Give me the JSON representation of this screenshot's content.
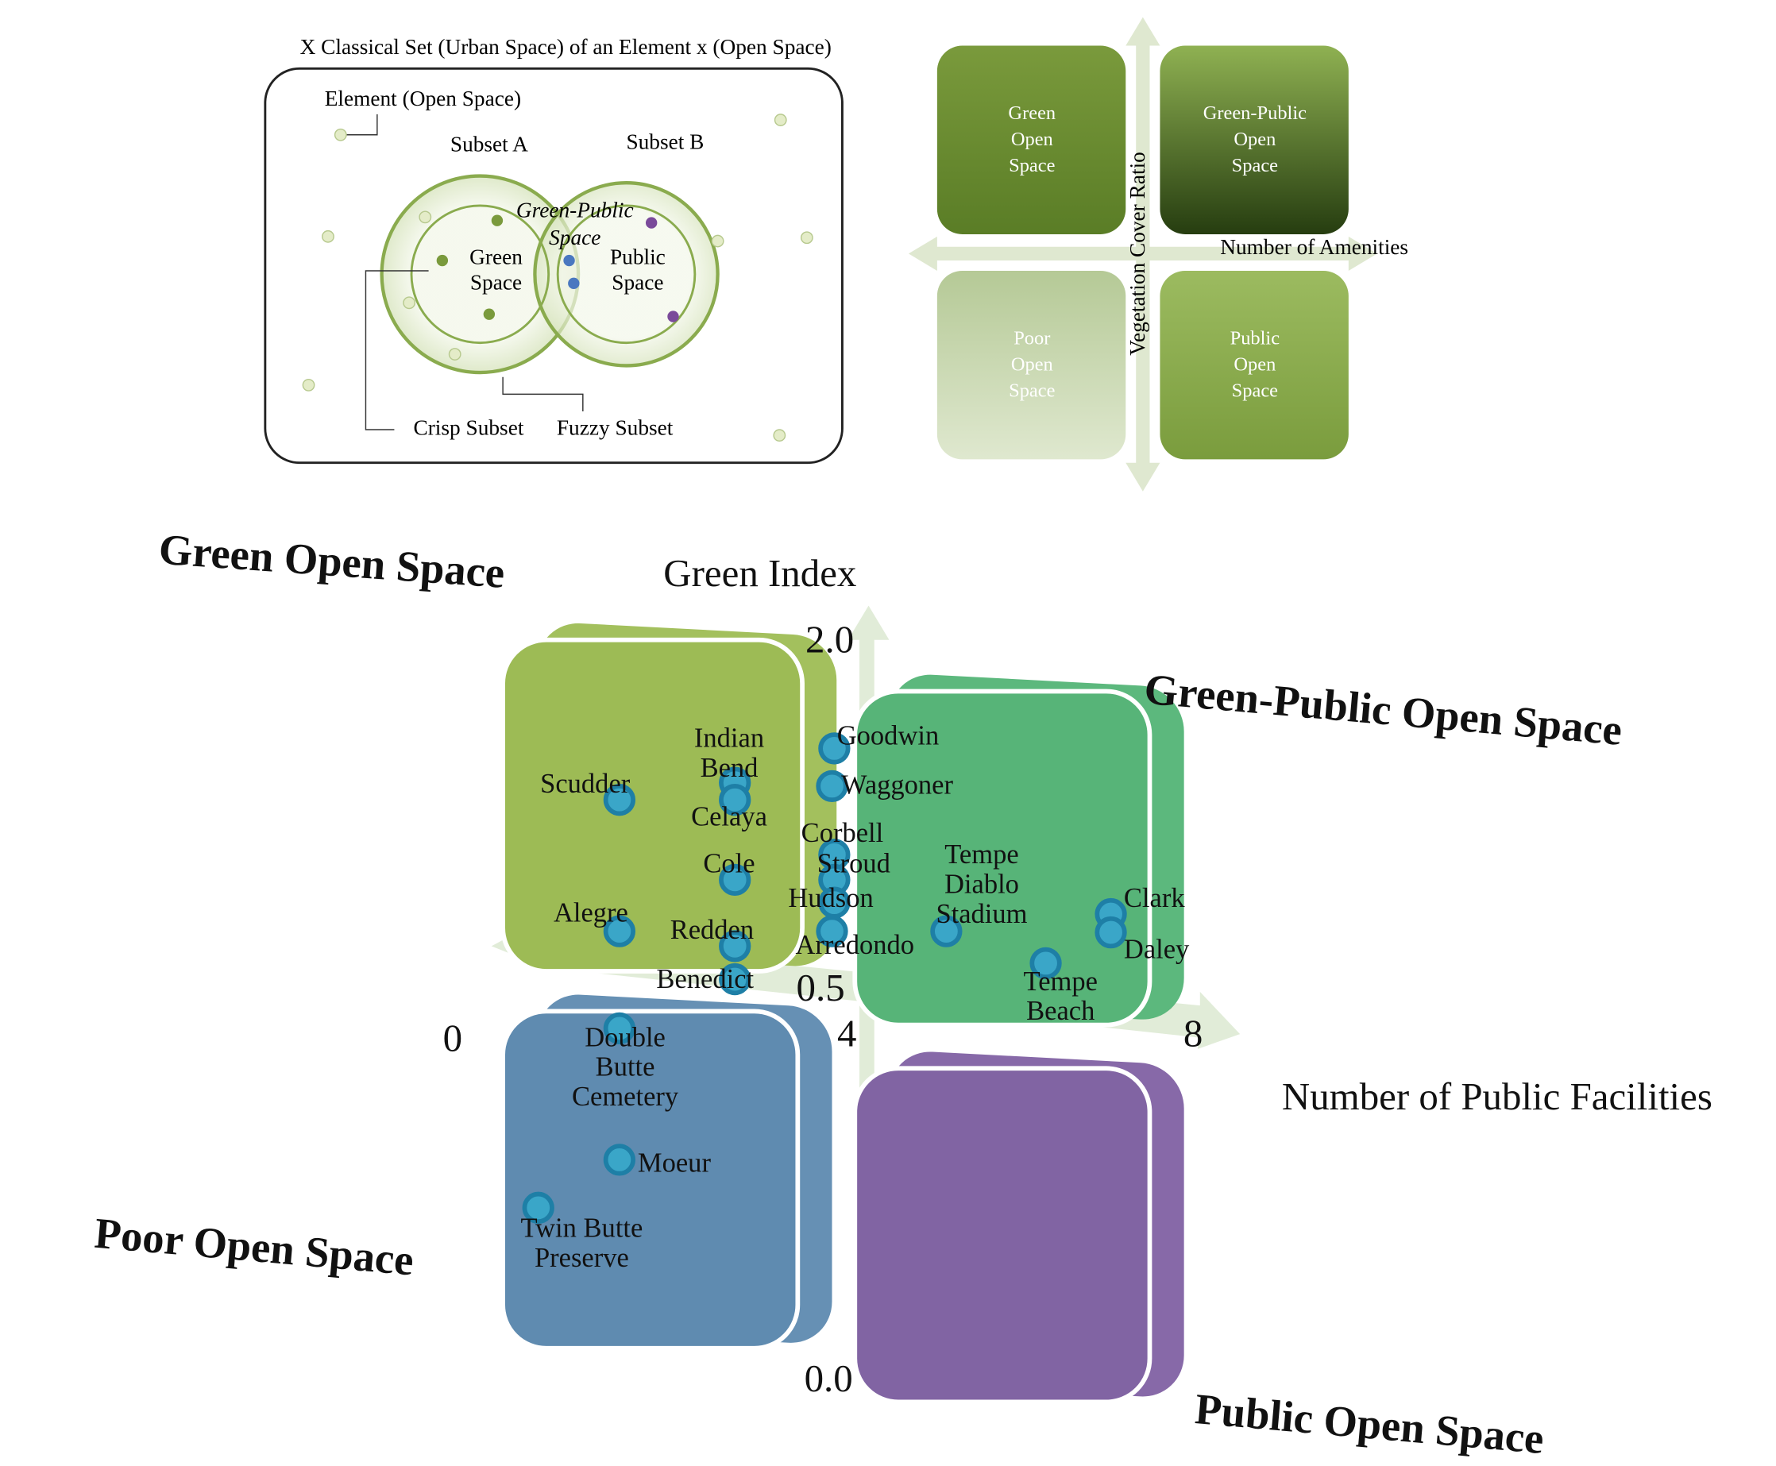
{
  "top_left": {
    "title": "X Classical Set (Urban Space) of an Element x (Open Space)",
    "element_label": "Element (Open Space)",
    "subset_a": "Subset A",
    "subset_b": "Subset B",
    "green_public": [
      "Green-Public",
      "Space"
    ],
    "green": [
      "Green",
      "Space"
    ],
    "public": [
      "Public",
      "Space"
    ],
    "crisp": "Crisp Subset",
    "fuzzy": "Fuzzy Subset"
  },
  "top_right": {
    "quadrants": [
      [
        "Green",
        "Open",
        "Space"
      ],
      [
        "Green-Public",
        "Open",
        "Space"
      ],
      [
        "Poor",
        "Open",
        "Space"
      ],
      [
        "Public",
        "Open",
        "Space"
      ]
    ],
    "y_axis": "Vegetation Cover Ratio",
    "x_axis": "Number of Amenities"
  },
  "bottom": {
    "quadrant_titles": [
      "Green Open Space",
      "Green-Public Open Space",
      "Poor Open Space",
      "Public Open Space"
    ],
    "y_axis": "Green Index",
    "x_axis": "Number of Public Facilities",
    "x_ticks": [
      "0",
      "4",
      "8"
    ],
    "y_ticks": [
      "2.0",
      "0.5",
      "0.0"
    ],
    "parks": [
      [
        "Scudder"
      ],
      [
        "Indian",
        "Bend"
      ],
      [
        "Celaya"
      ],
      [
        "Goodwin"
      ],
      [
        "Waggoner"
      ],
      [
        "Corbell"
      ],
      [
        "Stroud"
      ],
      [
        "Cole"
      ],
      [
        "Hudson"
      ],
      [
        "Tempe",
        "Diablo",
        "Stadium"
      ],
      [
        "Clark"
      ],
      [
        "Daley"
      ],
      [
        "Alegre"
      ],
      [
        "Redden"
      ],
      [
        "Arredondo"
      ],
      [
        "Benedict"
      ],
      [
        "Tempe",
        "Beach"
      ],
      [
        "Double",
        "Butte",
        "Cemetery"
      ],
      [
        "Moeur"
      ],
      [
        "Twin Butte",
        "Preserve"
      ]
    ]
  }
}
